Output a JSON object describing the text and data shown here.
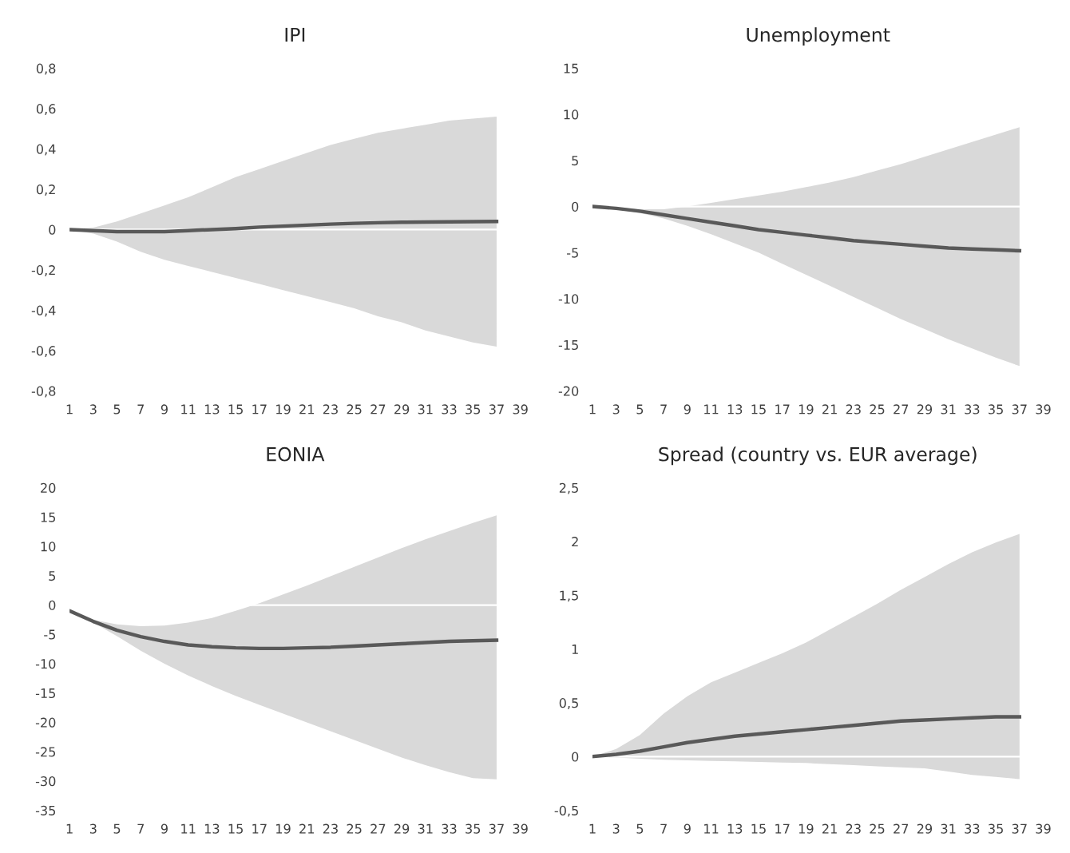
{
  "chart_data": [
    {
      "type": "line",
      "title": "IPI",
      "xlim": [
        1,
        39
      ],
      "xticks": [
        1,
        3,
        5,
        7,
        9,
        11,
        13,
        15,
        17,
        19,
        21,
        23,
        25,
        27,
        29,
        31,
        33,
        35,
        37,
        39
      ],
      "ylim": [
        -0.8,
        0.8
      ],
      "yticks": [
        {
          "value": -0.8,
          "label": "-0,8"
        },
        {
          "value": -0.6,
          "label": "-0,6"
        },
        {
          "value": -0.4,
          "label": "-0,4"
        },
        {
          "value": -0.2,
          "label": "-0,2"
        },
        0,
        {
          "value": 0.2,
          "label": "0,2"
        },
        {
          "value": 0.4,
          "label": "0,4"
        },
        {
          "value": 0.6,
          "label": "0,6"
        },
        {
          "value": 0.8,
          "label": "0,8"
        }
      ],
      "grid": false,
      "ref_lines": [
        {
          "axis": "y",
          "value": 0,
          "color": "#ffffff"
        }
      ],
      "series": [
        {
          "color": "#595959",
          "x": [
            1,
            3,
            5,
            7,
            9,
            11,
            13,
            15,
            17,
            19,
            21,
            23,
            25,
            27,
            29,
            31,
            33,
            35,
            37
          ],
          "values": [
            0,
            -0.005,
            -0.01,
            -0.01,
            -0.01,
            -0.005,
            0,
            0.005,
            0.012,
            0.017,
            0.022,
            0.027,
            0.031,
            0.034,
            0.036,
            0.037,
            0.038,
            0.039,
            0.04
          ],
          "upper": [
            0,
            0.01,
            0.04,
            0.08,
            0.12,
            0.16,
            0.21,
            0.26,
            0.3,
            0.34,
            0.38,
            0.42,
            0.45,
            0.48,
            0.5,
            0.52,
            0.54,
            0.55,
            0.56
          ],
          "lower": [
            0,
            -0.02,
            -0.06,
            -0.11,
            -0.15,
            -0.18,
            -0.21,
            -0.24,
            -0.27,
            -0.3,
            -0.33,
            -0.36,
            -0.39,
            -0.43,
            -0.46,
            -0.5,
            -0.53,
            -0.56,
            -0.58
          ]
        }
      ]
    },
    {
      "type": "line",
      "title": "Unemployment",
      "xlim": [
        1,
        39
      ],
      "xticks": [
        1,
        3,
        5,
        7,
        9,
        11,
        13,
        15,
        17,
        19,
        21,
        23,
        25,
        27,
        29,
        31,
        33,
        35,
        37,
        39
      ],
      "ylim": [
        -20,
        15
      ],
      "yticks": [
        -20,
        -15,
        -10,
        -5,
        0,
        5,
        10,
        15
      ],
      "grid": false,
      "ref_lines": [
        {
          "axis": "y",
          "value": 0,
          "color": "#ffffff"
        }
      ],
      "series": [
        {
          "color": "#595959",
          "x": [
            1,
            3,
            5,
            7,
            9,
            11,
            13,
            15,
            17,
            19,
            21,
            23,
            25,
            27,
            29,
            31,
            33,
            35,
            37
          ],
          "values": [
            0,
            -0.2,
            -0.5,
            -0.9,
            -1.3,
            -1.7,
            -2.1,
            -2.5,
            -2.8,
            -3.1,
            -3.4,
            -3.7,
            -3.9,
            -4.1,
            -4.3,
            -4.5,
            -4.6,
            -4.7,
            -4.8
          ],
          "upper": [
            0,
            -0.1,
            -0.3,
            -0.3,
            0,
            0.4,
            0.8,
            1.2,
            1.6,
            2.1,
            2.6,
            3.2,
            3.9,
            4.6,
            5.4,
            6.2,
            7,
            7.8,
            8.6
          ],
          "lower": [
            0,
            -0.3,
            -0.7,
            -1.3,
            -2.1,
            -3,
            -4,
            -5,
            -6.2,
            -7.4,
            -8.6,
            -9.8,
            -11,
            -12.2,
            -13.3,
            -14.4,
            -15.4,
            -16.4,
            -17.3
          ]
        }
      ]
    },
    {
      "type": "line",
      "title": "EONIA",
      "xlim": [
        1,
        39
      ],
      "xticks": [
        1,
        3,
        5,
        7,
        9,
        11,
        13,
        15,
        17,
        19,
        21,
        23,
        25,
        27,
        29,
        31,
        33,
        35,
        37,
        39
      ],
      "ylim": [
        -35,
        20
      ],
      "yticks": [
        -35,
        -30,
        -25,
        -20,
        -15,
        -10,
        -5,
        0,
        5,
        10,
        15,
        20
      ],
      "grid": false,
      "ref_lines": [
        {
          "axis": "y",
          "value": 0,
          "color": "#ffffff"
        }
      ],
      "series": [
        {
          "color": "#595959",
          "x": [
            1,
            3,
            5,
            7,
            9,
            11,
            13,
            15,
            17,
            19,
            21,
            23,
            25,
            27,
            29,
            31,
            33,
            35,
            37
          ],
          "values": [
            -1,
            -2.8,
            -4.3,
            -5.4,
            -6.2,
            -6.8,
            -7.1,
            -7.3,
            -7.4,
            -7.4,
            -7.3,
            -7.2,
            -7,
            -6.8,
            -6.6,
            -6.4,
            -6.2,
            -6.1,
            -6
          ],
          "upper": [
            -1,
            -2.5,
            -3.3,
            -3.6,
            -3.5,
            -3,
            -2.2,
            -1,
            0.3,
            1.8,
            3.3,
            4.9,
            6.5,
            8.1,
            9.7,
            11.2,
            12.6,
            14,
            15.3
          ],
          "lower": [
            -1,
            -3,
            -5.3,
            -7.8,
            -10,
            -12,
            -13.8,
            -15.5,
            -17,
            -18.5,
            -20,
            -21.5,
            -23,
            -24.5,
            -26,
            -27.3,
            -28.5,
            -29.5,
            -29.7
          ]
        }
      ]
    },
    {
      "type": "line",
      "title": "Spread (country vs. EUR average)",
      "xlim": [
        1,
        39
      ],
      "xticks": [
        1,
        3,
        5,
        7,
        9,
        11,
        13,
        15,
        17,
        19,
        21,
        23,
        25,
        27,
        29,
        31,
        33,
        35,
        37,
        39
      ],
      "ylim": [
        -0.5,
        2.5
      ],
      "yticks": [
        {
          "value": -0.5,
          "label": "-0,5"
        },
        0,
        {
          "value": 0.5,
          "label": "0,5"
        },
        1,
        {
          "value": 1.5,
          "label": "1,5"
        },
        2,
        {
          "value": 2.5,
          "label": "2,5"
        }
      ],
      "grid": false,
      "ref_lines": [
        {
          "axis": "y",
          "value": 0,
          "color": "#ffffff"
        }
      ],
      "series": [
        {
          "color": "#595959",
          "x": [
            1,
            3,
            5,
            7,
            9,
            11,
            13,
            15,
            17,
            19,
            21,
            23,
            25,
            27,
            29,
            31,
            33,
            35,
            37
          ],
          "values": [
            0,
            0.02,
            0.05,
            0.09,
            0.13,
            0.16,
            0.19,
            0.21,
            0.23,
            0.25,
            0.27,
            0.29,
            0.31,
            0.33,
            0.34,
            0.35,
            0.36,
            0.37,
            0.37
          ],
          "upper": [
            0,
            0.07,
            0.2,
            0.4,
            0.56,
            0.69,
            0.78,
            0.87,
            0.96,
            1.06,
            1.18,
            1.3,
            1.42,
            1.55,
            1.67,
            1.79,
            1.9,
            1.99,
            2.07
          ],
          "lower": [
            0,
            -0.01,
            -0.02,
            -0.03,
            -0.035,
            -0.04,
            -0.045,
            -0.05,
            -0.055,
            -0.06,
            -0.07,
            -0.08,
            -0.09,
            -0.1,
            -0.11,
            -0.14,
            -0.17,
            -0.19,
            -0.21
          ]
        }
      ]
    }
  ]
}
